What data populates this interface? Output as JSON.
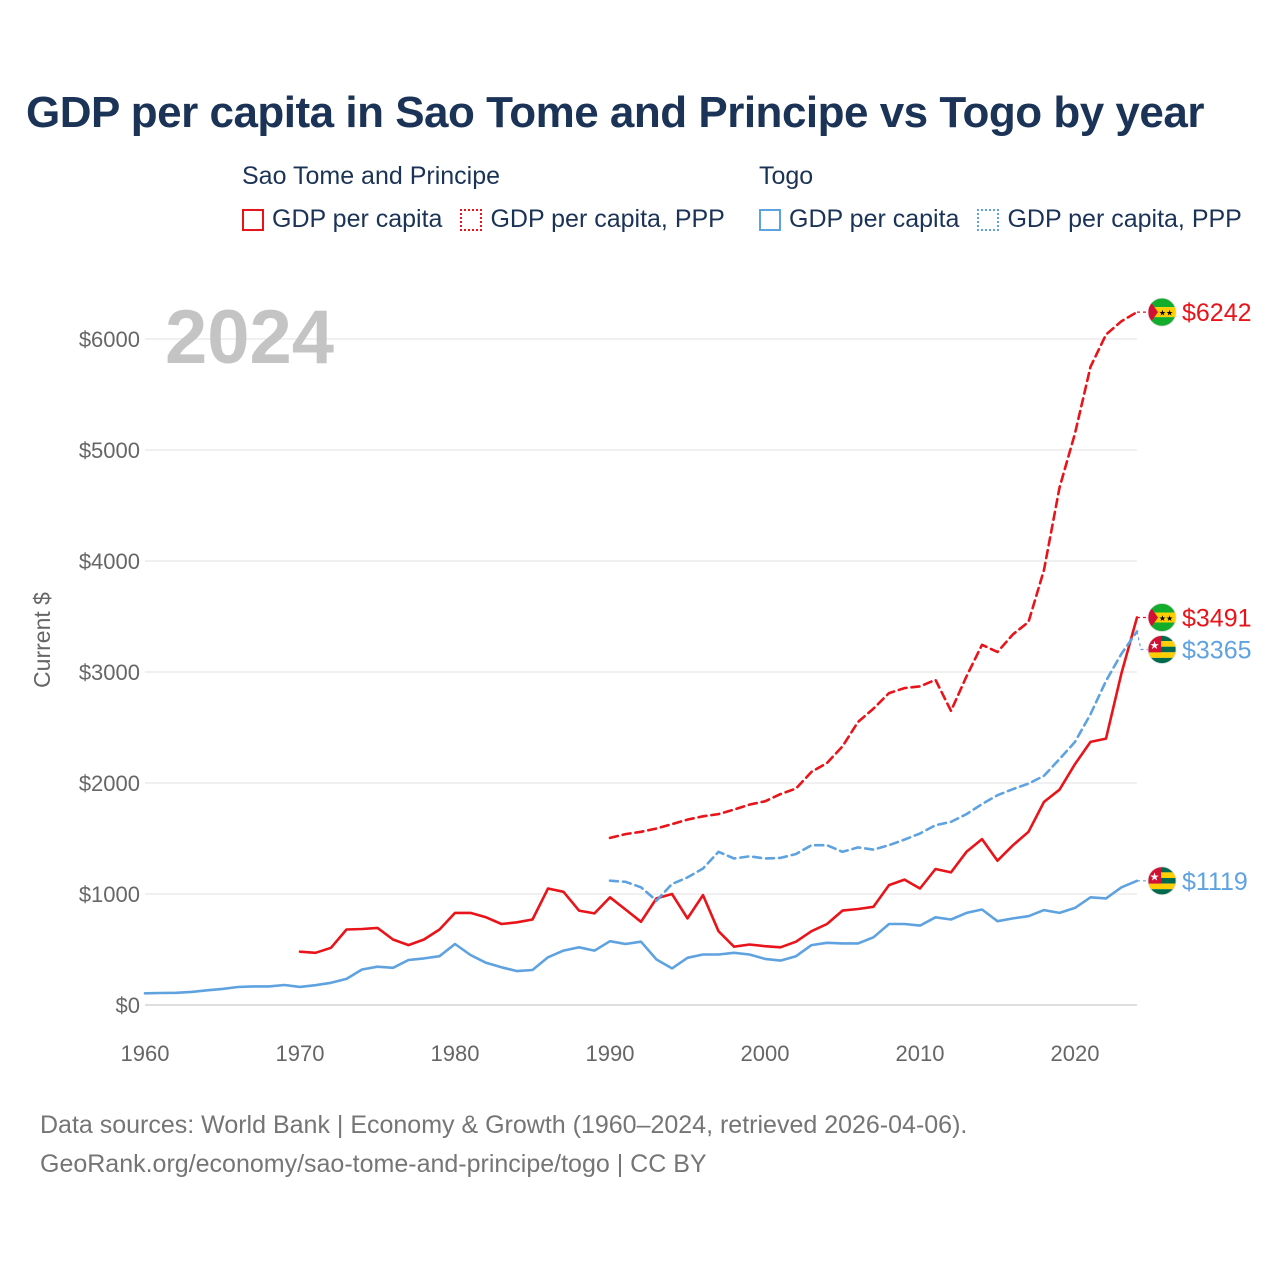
{
  "title": "GDP per capita in Sao Tome and Principe vs Togo by year",
  "legend": {
    "groups": [
      {
        "name": "Sao Tome and Principe",
        "color": "#e8141a",
        "items": [
          {
            "label": "GDP per capita",
            "style": "solid"
          },
          {
            "label": "GDP per capita, PPP",
            "style": "dotted"
          }
        ]
      },
      {
        "name": "Togo",
        "color": "#5fa2e0",
        "items": [
          {
            "label": "GDP per capita",
            "style": "solid"
          },
          {
            "label": "GDP per capita, PPP",
            "style": "dotted"
          }
        ]
      }
    ]
  },
  "year_watermark": "2024",
  "footer": {
    "line1": "Data sources: World Bank | Economy & Growth (1960–2024, retrieved 2026-04-06).",
    "line2": "GeoRank.org/economy/sao-tome-and-principe/togo | CC BY"
  },
  "chart_data": {
    "type": "line",
    "title": "GDP per capita in Sao Tome and Principe vs Togo by year",
    "ylabel": "Current $",
    "xlabel": "",
    "xlim": [
      1960,
      2024
    ],
    "ylim": [
      0,
      6000
    ],
    "grid": true,
    "x_ticks": [
      1960,
      1970,
      1980,
      1990,
      2000,
      2010,
      2020
    ],
    "x_tick_labels": [
      "1960",
      "1970",
      "1980",
      "1990",
      "2000",
      "2010",
      "2020"
    ],
    "y_ticks": [
      0,
      1000,
      2000,
      3000,
      4000,
      5000,
      6000
    ],
    "y_tick_labels": [
      "$0",
      "$1000",
      "$2000",
      "$3000",
      "$4000",
      "$5000",
      "$6000"
    ],
    "series": [
      {
        "name": "Sao Tome and Principe GDP per capita",
        "color": "#e8141a",
        "dash": "solid",
        "end_label": "$3491",
        "flag": "sao-tome-and-principe",
        "x": [
          1970,
          1971,
          1972,
          1973,
          1974,
          1975,
          1976,
          1977,
          1978,
          1979,
          1980,
          1981,
          1982,
          1983,
          1984,
          1985,
          1986,
          1987,
          1988,
          1989,
          1990,
          1991,
          1992,
          1993,
          1994,
          1995,
          1996,
          1997,
          1998,
          1999,
          2000,
          2001,
          2002,
          2003,
          2004,
          2005,
          2006,
          2007,
          2008,
          2009,
          2010,
          2011,
          2012,
          2013,
          2014,
          2015,
          2016,
          2017,
          2018,
          2019,
          2020,
          2021,
          2022,
          2023,
          2024
        ],
        "y": [
          480,
          470,
          515,
          680,
          685,
          695,
          590,
          540,
          590,
          680,
          830,
          830,
          790,
          730,
          745,
          770,
          1050,
          1020,
          850,
          825,
          970,
          860,
          750,
          960,
          1000,
          780,
          990,
          665,
          525,
          545,
          530,
          520,
          570,
          665,
          730,
          850,
          865,
          885,
          1080,
          1130,
          1050,
          1225,
          1195,
          1380,
          1495,
          1300,
          1440,
          1560,
          1830,
          1940,
          2170,
          2370,
          2400,
          2990,
          3491
        ]
      },
      {
        "name": "Sao Tome and Principe GDP per capita, PPP",
        "color": "#e8141a",
        "dash": "dashed",
        "end_label": "$6242",
        "flag": "sao-tome-and-principe",
        "x": [
          1990,
          1991,
          1992,
          1993,
          1994,
          1995,
          1996,
          1997,
          1998,
          1999,
          2000,
          2001,
          2002,
          2003,
          2004,
          2005,
          2006,
          2007,
          2008,
          2009,
          2010,
          2011,
          2012,
          2013,
          2014,
          2015,
          2016,
          2017,
          2018,
          2019,
          2020,
          2021,
          2022,
          2023,
          2024
        ],
        "y": [
          1505,
          1540,
          1560,
          1590,
          1630,
          1670,
          1700,
          1720,
          1760,
          1805,
          1835,
          1900,
          1950,
          2100,
          2180,
          2330,
          2550,
          2670,
          2810,
          2855,
          2870,
          2930,
          2650,
          2960,
          3245,
          3180,
          3340,
          3450,
          3920,
          4660,
          5150,
          5750,
          6040,
          6160,
          6242
        ]
      },
      {
        "name": "Togo GDP per capita",
        "color": "#5fa2e0",
        "dash": "solid",
        "end_label": "$1119",
        "flag": "togo",
        "x": [
          1960,
          1961,
          1962,
          1963,
          1964,
          1965,
          1966,
          1967,
          1968,
          1969,
          1970,
          1971,
          1972,
          1973,
          1974,
          1975,
          1976,
          1977,
          1978,
          1979,
          1980,
          1981,
          1982,
          1983,
          1984,
          1985,
          1986,
          1987,
          1988,
          1989,
          1990,
          1991,
          1992,
          1993,
          1994,
          1995,
          1996,
          1997,
          1998,
          1999,
          2000,
          2001,
          2002,
          2003,
          2004,
          2005,
          2006,
          2007,
          2008,
          2009,
          2010,
          2011,
          2012,
          2013,
          2014,
          2015,
          2016,
          2017,
          2018,
          2019,
          2020,
          2021,
          2022,
          2023,
          2024
        ],
        "y": [
          105,
          108,
          110,
          118,
          132,
          145,
          162,
          168,
          168,
          180,
          163,
          178,
          200,
          235,
          320,
          345,
          335,
          405,
          420,
          440,
          550,
          450,
          380,
          340,
          305,
          315,
          430,
          490,
          520,
          490,
          575,
          550,
          570,
          410,
          330,
          425,
          455,
          455,
          470,
          455,
          415,
          400,
          440,
          540,
          560,
          555,
          555,
          610,
          730,
          730,
          715,
          790,
          770,
          830,
          860,
          755,
          780,
          800,
          855,
          830,
          875,
          970,
          960,
          1060,
          1119
        ]
      },
      {
        "name": "Togo GDP per capita, PPP",
        "color": "#5fa2e0",
        "dash": "dashed",
        "end_label": "$3365",
        "flag": "togo",
        "x": [
          1990,
          1991,
          1992,
          1993,
          1994,
          1995,
          1996,
          1997,
          1998,
          1999,
          2000,
          2001,
          2002,
          2003,
          2004,
          2005,
          2006,
          2007,
          2008,
          2009,
          2010,
          2011,
          2012,
          2013,
          2014,
          2015,
          2016,
          2017,
          2018,
          2019,
          2020,
          2021,
          2022,
          2023,
          2024
        ],
        "y": [
          1120,
          1110,
          1060,
          940,
          1090,
          1150,
          1230,
          1380,
          1320,
          1340,
          1320,
          1325,
          1360,
          1440,
          1440,
          1380,
          1420,
          1400,
          1440,
          1490,
          1545,
          1620,
          1650,
          1720,
          1810,
          1890,
          1945,
          1995,
          2065,
          2215,
          2370,
          2620,
          2920,
          3165,
          3365
        ]
      }
    ]
  }
}
